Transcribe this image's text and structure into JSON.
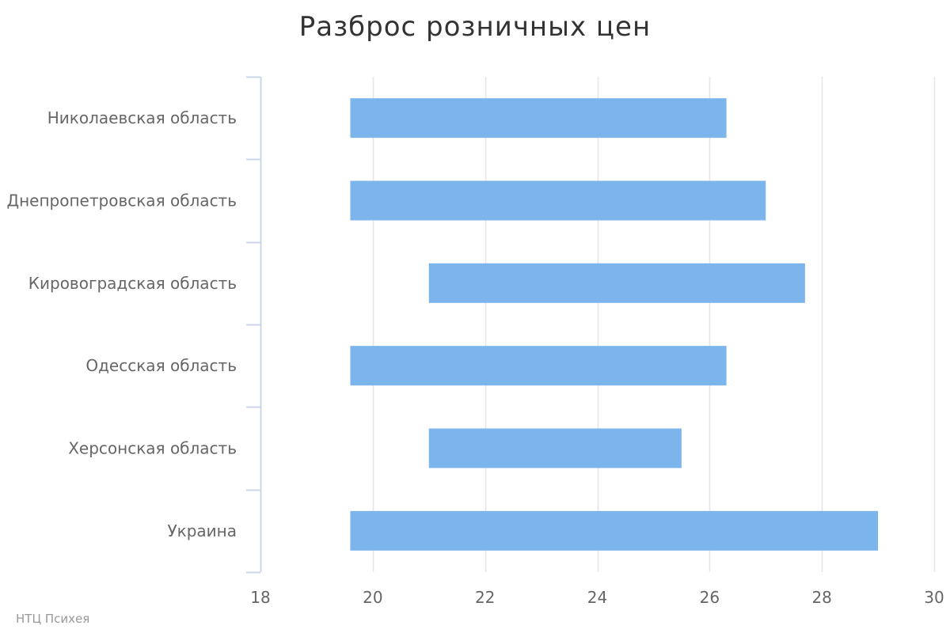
{
  "chart_data": {
    "type": "bar",
    "subtype": "columnrange",
    "orientation": "horizontal",
    "title": "Разброс розничных цен",
    "categories": [
      "Николаевская область",
      "Днепропетровская область",
      "Кировоградская область",
      "Одесская область",
      "Херсонская область",
      "Украина"
    ],
    "ranges": [
      [
        19.6,
        26.3
      ],
      [
        19.6,
        27.0
      ],
      [
        21.0,
        27.7
      ],
      [
        19.6,
        26.3
      ],
      [
        21.0,
        25.5
      ],
      [
        19.6,
        29.0
      ]
    ],
    "xlim": [
      18,
      30
    ],
    "xticks": [
      18,
      20,
      22,
      24,
      26,
      28,
      30
    ],
    "grid": true,
    "legend": false,
    "bar_color": "#7cb5ec",
    "grid_color": "#e6e6e6",
    "axis_color": "#ccd6eb",
    "label_color": "#666666"
  },
  "credits": "НТЦ Психея"
}
